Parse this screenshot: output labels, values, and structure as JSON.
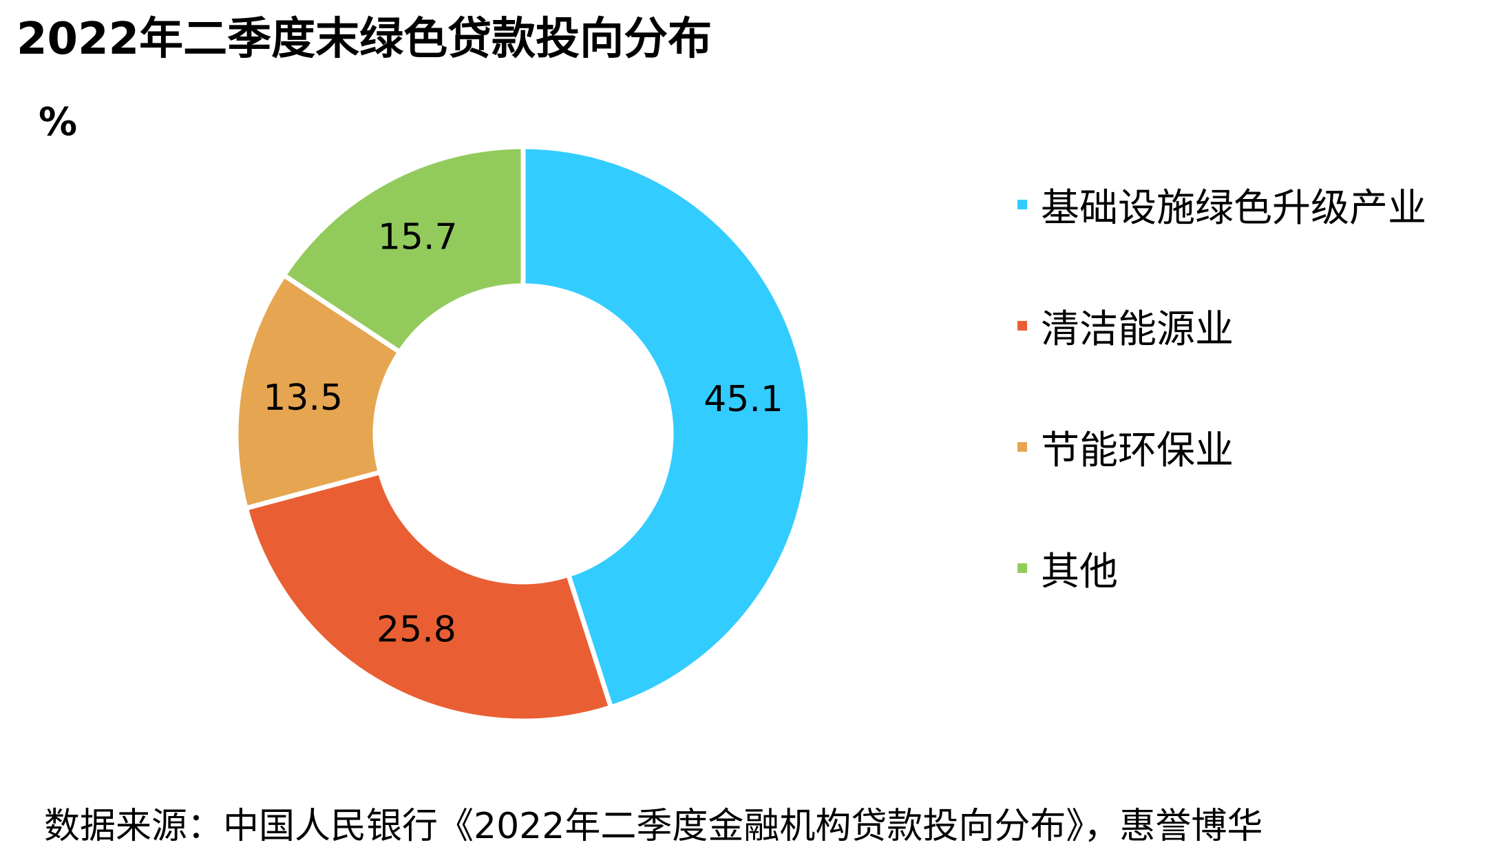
{
  "title": "2022年二季度末绿色贷款投向分布",
  "unit": "%",
  "source": "数据来源：中国人民银行《2022年二季度金融机构贷款投向分布》，惠誉博华",
  "chart_data": {
    "type": "pie",
    "variant": "donut",
    "title": "2022年二季度末绿色贷款投向分布",
    "ylabel": "%",
    "legend_position": "right",
    "categories": [
      "基础设施绿色升级产业",
      "清洁能源业",
      "节能环保业",
      "其他"
    ],
    "values": [
      45.1,
      25.8,
      13.5,
      15.7
    ],
    "labels": [
      "45.1",
      "25.8",
      "13.5",
      "15.7"
    ],
    "colors": [
      "#33CCFF",
      "#E95F33",
      "#E6A550",
      "#92CB5C"
    ],
    "start_angle": "12 o'clock",
    "direction": "clockwise"
  }
}
